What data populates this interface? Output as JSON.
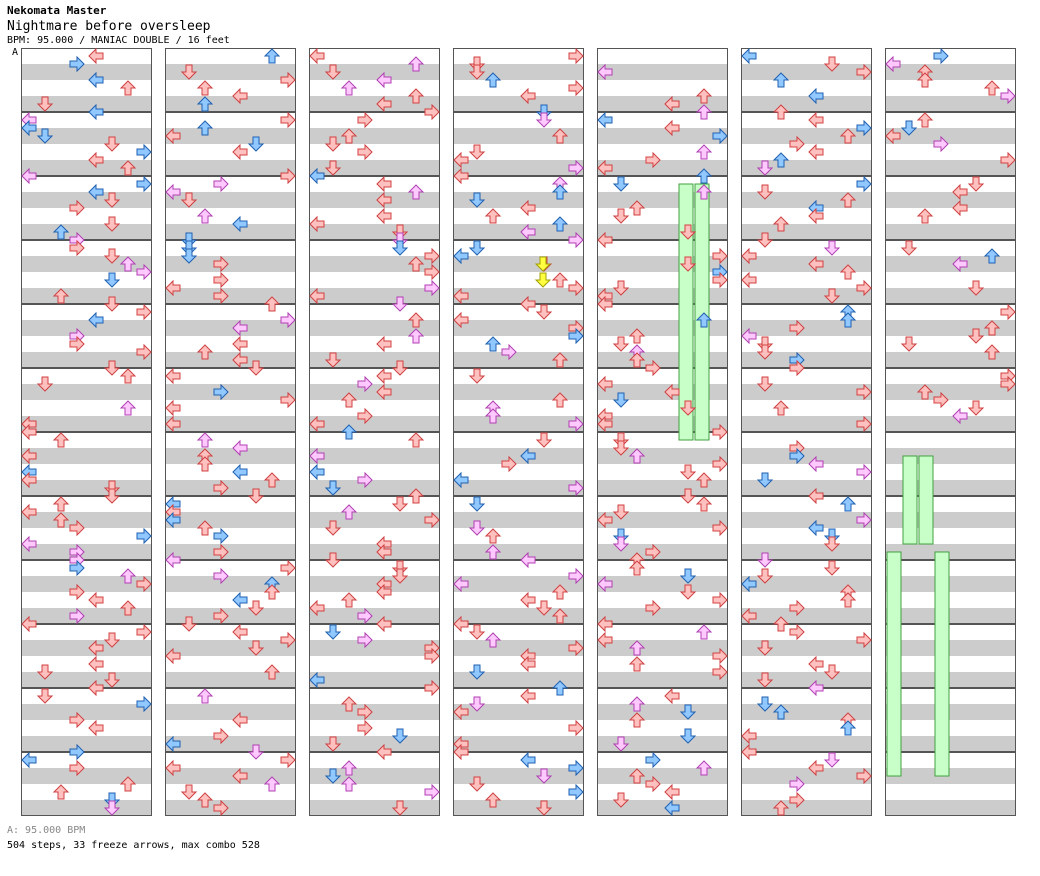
{
  "header": {
    "artist": "Nekomata Master",
    "title": "Nightmare before oversleep",
    "info": "BPM: 95.000 / MANIAC DOUBLE / 16 feet"
  },
  "bpm_marker": "A",
  "footer": {
    "bpm_legend": "A: 95.000 BPM",
    "stats": "504 steps, 33 freeze arrows, max combo 528"
  },
  "colors": {
    "quarter_fill": "#ffc0c0",
    "quarter_stroke": "#d04040",
    "eighth_fill": "#90c8ff",
    "eighth_stroke": "#2060b0",
    "sixteenth_fill": "#ffc8ff",
    "sixteenth_stroke": "#b040b0",
    "shock_fill": "#ffff40",
    "freeze_fill": "#c8ffc8",
    "freeze_stroke": "#40a040",
    "stripe": "#cccccc",
    "border": "#555555"
  },
  "chart_data": {
    "type": "stepchart",
    "style": "MANIAC DOUBLE",
    "bpm": 95.0,
    "difficulty_feet": 16,
    "panels": [
      "L",
      "D",
      "U",
      "R",
      "L",
      "D",
      "U",
      "R"
    ],
    "measures_per_column": 12,
    "columns": 7,
    "steps": 504,
    "freeze_arrows": 33,
    "max_combo": 528,
    "notes": [
      [
        0,
        "quarter",
        [
          6
        ]
      ],
      [
        0,
        "quarter",
        [
          6
        ]
      ],
      [
        0,
        "quarter",
        [
          7
        ]
      ],
      [
        0,
        "quarter",
        [
          6
        ]
      ],
      [
        0,
        "quarter",
        [
          7
        ]
      ],
      [
        0,
        "quarter",
        [
          5
        ]
      ],
      [
        0,
        "quarter",
        [
          7
        ]
      ],
      [
        0,
        "quarter",
        [
          4
        ]
      ],
      [
        0,
        "quarter",
        [
          6
        ]
      ],
      [
        0,
        "quarter",
        [
          2
        ]
      ],
      [
        0,
        "eighth",
        [
          4
        ]
      ],
      [
        0,
        "eighth",
        [
          5
        ]
      ],
      [
        0,
        "quarter",
        [
          3
        ]
      ],
      [
        0,
        "quarter",
        [
          2
        ]
      ],
      [
        0,
        "quarter",
        [
          1
        ]
      ],
      [
        0,
        "quarter",
        [
          0
        ]
      ],
      [
        0,
        "quarter",
        [
          4
        ]
      ],
      [
        0,
        "quarter",
        [
          5
        ]
      ],
      [
        0,
        "quarter",
        [
          6
        ]
      ],
      [
        0,
        "quarter",
        [
          5
        ]
      ],
      [
        0,
        "quarter",
        [
          6
        ]
      ],
      [
        0,
        "quarter",
        [
          7
        ]
      ],
      [
        0,
        "quarter",
        [
          4
        ]
      ],
      [
        0,
        "quarter",
        [
          5
        ]
      ],
      [
        0,
        "quarter",
        [
          6
        ]
      ],
      [
        0,
        "quarter",
        [
          7
        ]
      ],
      [
        0,
        "quarter",
        [
          6
        ]
      ],
      [
        0,
        "quarter",
        [
          5
        ]
      ],
      [
        0,
        "eighth",
        [
          3
        ]
      ],
      [
        0,
        "quarter",
        [
          4
        ]
      ],
      [
        0,
        "quarter",
        [
          5
        ]
      ],
      [
        0,
        "quarter",
        [
          6
        ]
      ],
      [
        0,
        "quarter",
        [
          7
        ]
      ],
      [
        0,
        "quarter",
        [
          6
        ]
      ],
      [
        0,
        "eighth",
        [
          4
        ]
      ],
      [
        0,
        "quarter",
        [
          5
        ]
      ],
      [
        0,
        "quarter",
        [
          6
        ]
      ],
      [
        0,
        "eighth",
        [
          3
        ]
      ],
      [
        0,
        "quarter",
        [
          4
        ]
      ],
      [
        0,
        "quarter",
        [
          5
        ]
      ]
    ]
  }
}
